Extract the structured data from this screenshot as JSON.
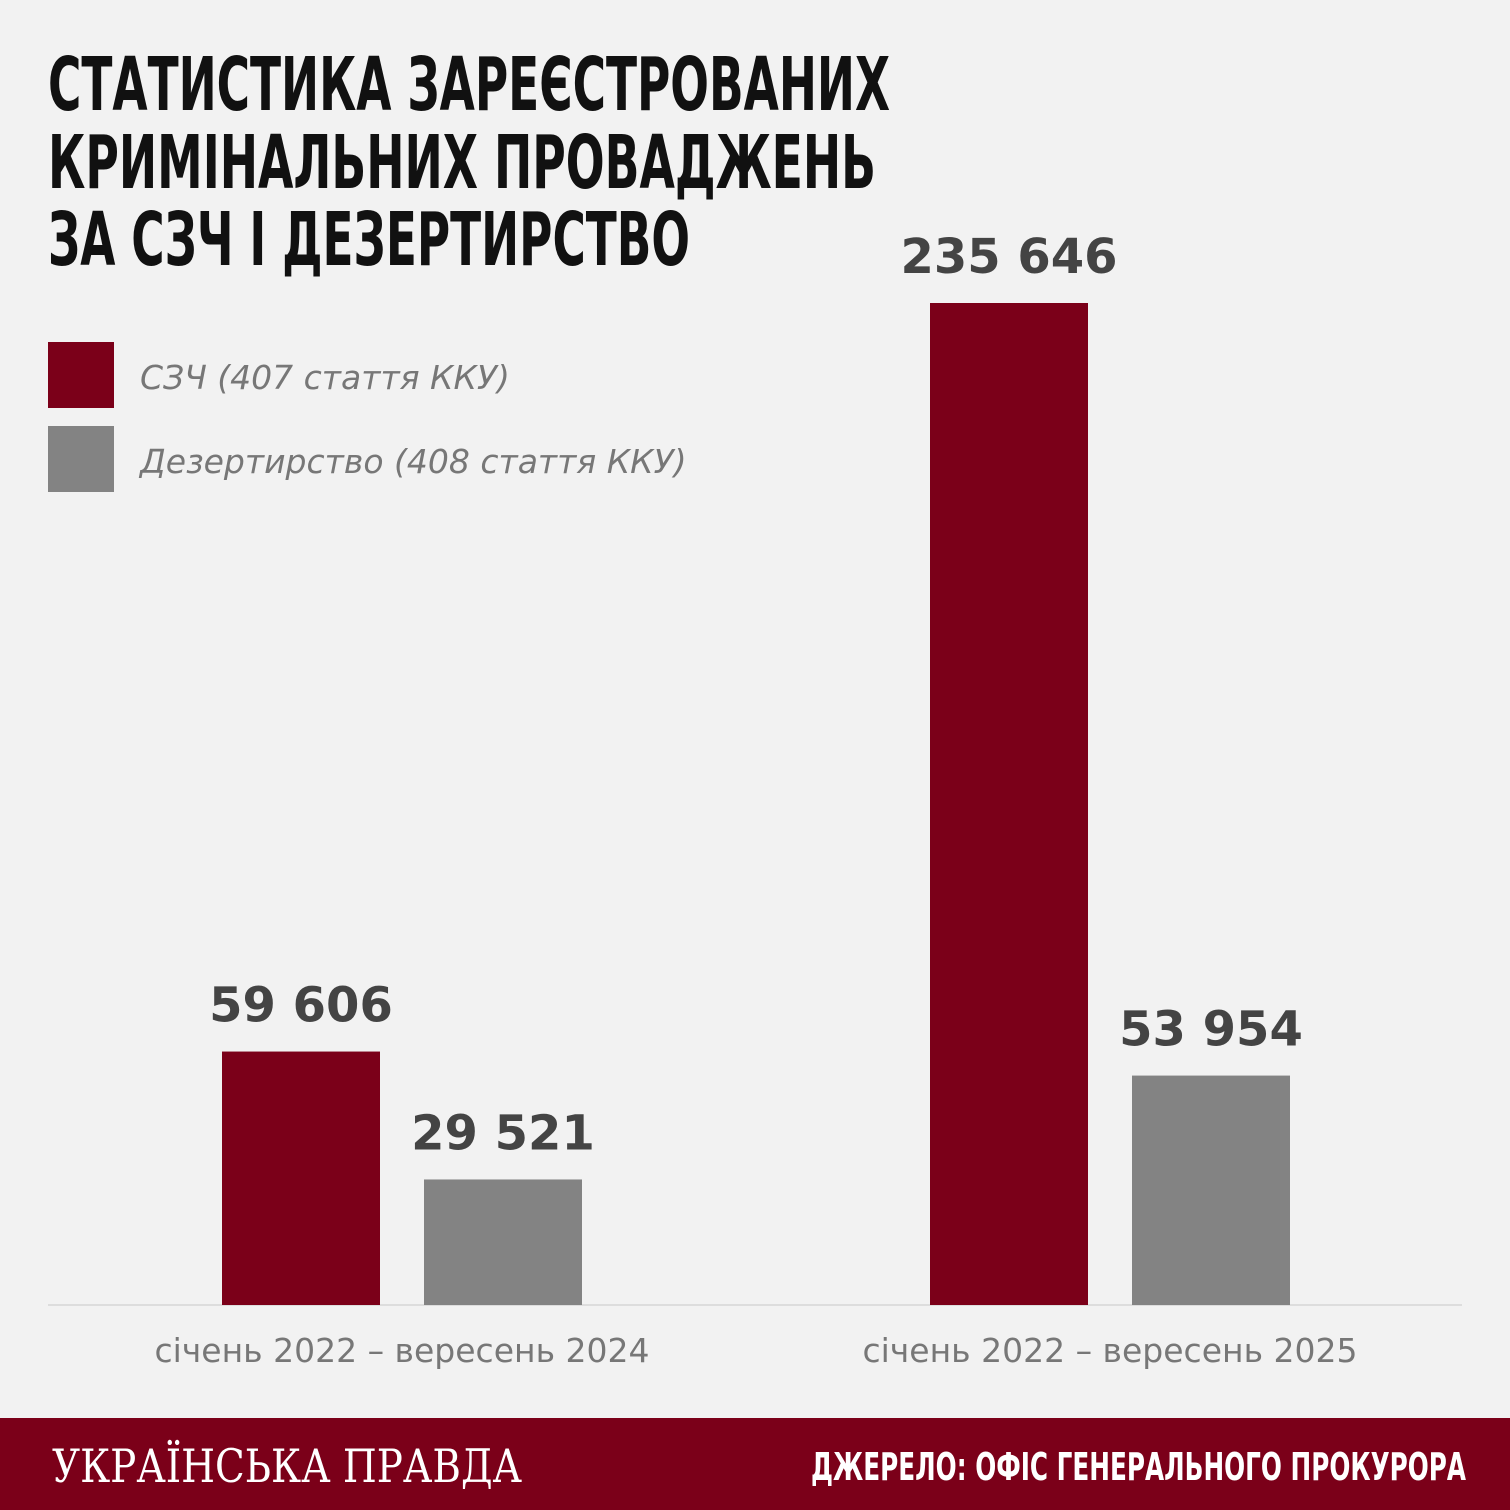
{
  "chart_data": {
    "type": "bar",
    "title": [
      "СТАТИСТИКА ЗАРЕЄСТРОВАНИХ",
      "КРИМІНАЛЬНИХ ПРОВАДЖЕНЬ",
      "ЗА СЗЧ І ДЕЗЕРТИРСТВО"
    ],
    "categories": [
      "січень 2022 – вересень 2024",
      "січень 2022 – вересень 2025"
    ],
    "series": [
      {
        "name": "СЗЧ (407 стаття ККУ)",
        "color": "#7b0019",
        "values": [
          59606,
          235646
        ],
        "value_labels": [
          "59 606",
          "235 646"
        ]
      },
      {
        "name": "Дезертирство (408 стаття ККУ)",
        "color": "#838383",
        "values": [
          29521,
          53954
        ],
        "value_labels": [
          "29 521",
          "53 954"
        ]
      }
    ],
    "brand": "УКРАЇНСЬКА ПРАВДА",
    "source": "ДЖЕРЕЛО: ОФІС ГЕНЕРАЛЬНОГО ПРОКУРОРА"
  }
}
